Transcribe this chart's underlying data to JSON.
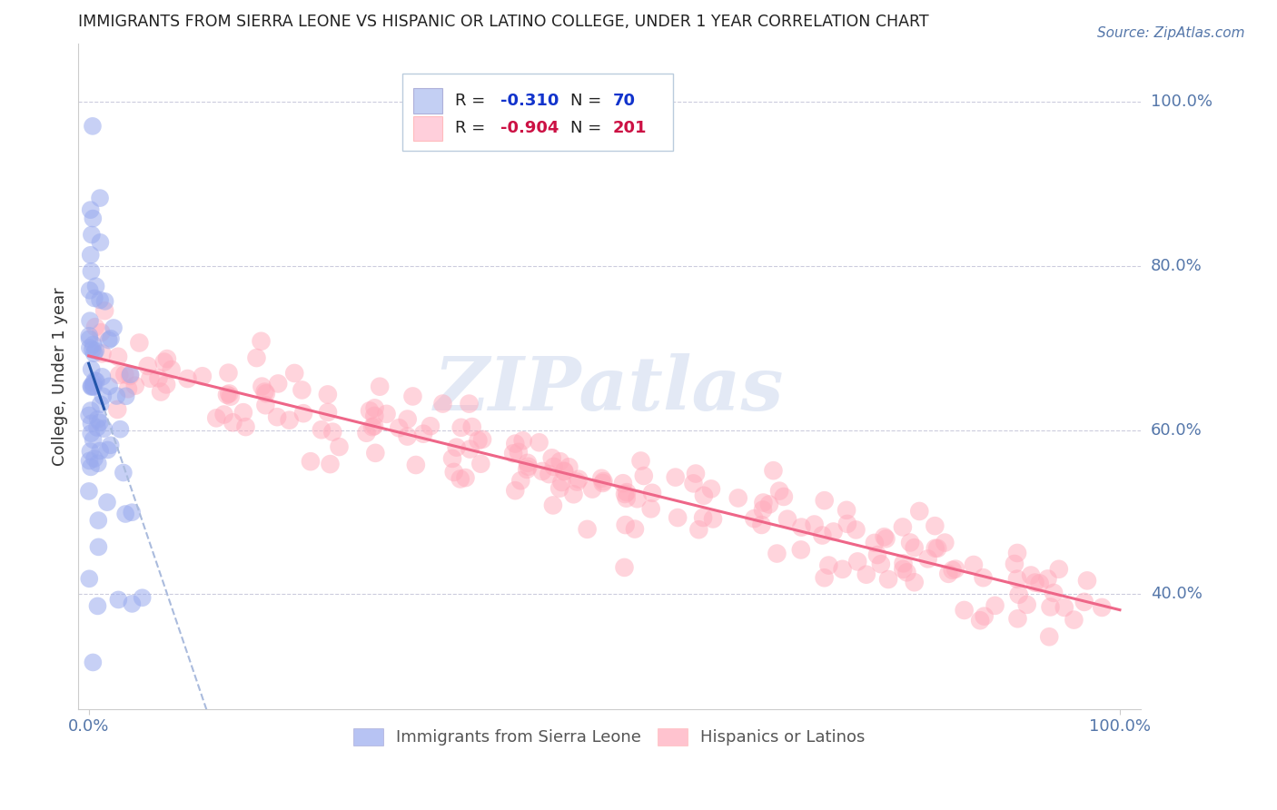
{
  "title": "IMMIGRANTS FROM SIERRA LEONE VS HISPANIC OR LATINO COLLEGE, UNDER 1 YEAR CORRELATION CHART",
  "source": "Source: ZipAtlas.com",
  "ylabel": "College, Under 1 year",
  "y_tick_labels": [
    "100.0%",
    "80.0%",
    "60.0%",
    "40.0%"
  ],
  "y_tick_positions": [
    1.0,
    0.8,
    0.6,
    0.4
  ],
  "legend_r1": "-0.310",
  "legend_n1": "70",
  "legend_r2": "-0.904",
  "legend_n2": "201",
  "blue_scatter_color": "#99aaee",
  "pink_scatter_color": "#ffaabb",
  "blue_line_color": "#2255aa",
  "pink_line_color": "#ee6688",
  "dashed_line_color": "#aabbdd",
  "watermark": "ZIPatlas",
  "legend_label1": "Immigrants from Sierra Leone",
  "legend_label2": "Hispanics or Latinos",
  "legend_box_color": "#bbccee",
  "legend_rect1_color": "#aabbee",
  "legend_rect2_color": "#ffbbcc",
  "legend_text_color": "#1133aa",
  "r_color1": "#1133cc",
  "r_color2": "#cc1144",
  "title_color": "#222222",
  "axis_label_color": "#5577aa",
  "ylabel_color": "#333333",
  "grid_color": "#ccccdd",
  "blue_seed": 42,
  "pink_seed": 7
}
